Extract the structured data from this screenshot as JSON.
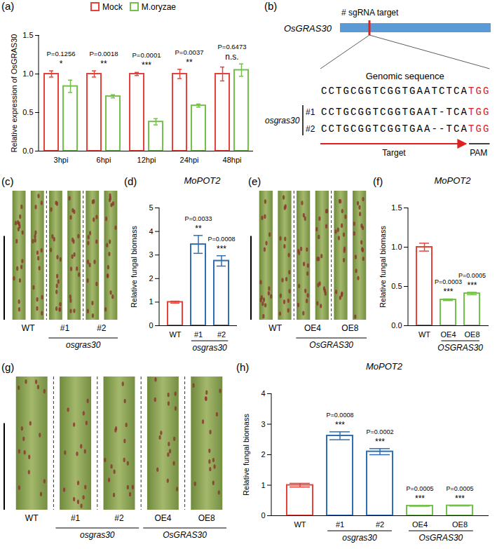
{
  "chart_data": [
    {
      "panel": "(a)",
      "type": "bar",
      "ylabel": "Relative expression of OsGRAS30",
      "categories": [
        "3hpi",
        "6hpi",
        "12hpi",
        "24hpi",
        "48hpi"
      ],
      "series": [
        {
          "name": "Mock",
          "color": "#e8413a",
          "values": [
            1.0,
            1.0,
            1.0,
            1.0,
            1.0
          ],
          "errors": [
            0.04,
            0.04,
            0.02,
            0.06,
            0.09
          ]
        },
        {
          "name": "M.oryzae",
          "color": "#73c04b",
          "values": [
            0.84,
            0.71,
            0.38,
            0.59,
            1.05
          ],
          "errors": [
            0.08,
            0.02,
            0.04,
            0.02,
            0.08
          ]
        }
      ],
      "ylim": [
        0,
        1.5
      ],
      "yticks": [
        {
          "value": 0,
          "label": "0.0"
        },
        {
          "value": 0.5,
          "label": "0.5"
        },
        {
          "value": 1,
          "label": "1.0"
        },
        {
          "value": 1.5,
          "label": "1.5"
        }
      ],
      "annotations": [
        {
          "category": "3hpi",
          "label": "P=0.1256",
          "stars": "*"
        },
        {
          "category": "6hpi",
          "label": "P=0.0018",
          "stars": "**"
        },
        {
          "category": "12hpi",
          "label": "P=0.0001",
          "stars": "***"
        },
        {
          "category": "24hpi",
          "label": "P=0.0037",
          "stars": "**"
        },
        {
          "category": "48hpi",
          "label": "P=0.6473",
          "stars": "n.s."
        }
      ],
      "legend": "top"
    },
    {
      "panel": "(d)",
      "type": "bar",
      "title": "MoPOT2",
      "ylabel": "Relative fungal biomass",
      "categories": [
        "WT",
        "#1",
        "#2"
      ],
      "values": [
        1.0,
        3.45,
        2.75
      ],
      "errors": [
        0.04,
        0.38,
        0.22
      ],
      "colors": [
        "#e8413a",
        "#2f6eb5",
        "#2f6eb5"
      ],
      "ylim": [
        0,
        5
      ],
      "yticks": [
        0,
        1,
        2,
        3,
        4,
        5
      ],
      "annotations": [
        {
          "category": "#1",
          "label": "P=0.0033",
          "stars": "**"
        },
        {
          "category": "#2",
          "label": "P=0.0008",
          "stars": "***"
        }
      ],
      "groups": [
        {
          "label": "osgras30",
          "categories": [
            "#1",
            "#2"
          ]
        }
      ]
    },
    {
      "panel": "(f)",
      "type": "bar",
      "title": "MoPOT2",
      "ylabel": "Relative fungal biomass",
      "categories": [
        "WT",
        "OE4",
        "OE8"
      ],
      "values": [
        1.0,
        0.33,
        0.41
      ],
      "errors": [
        0.05,
        0.01,
        0.015
      ],
      "colors": [
        "#e8413a",
        "#73c04b",
        "#73c04b"
      ],
      "ylim": [
        0,
        1.5
      ],
      "yticks": [
        {
          "value": 0,
          "label": "0.0"
        },
        {
          "value": 0.5,
          "label": "0.5"
        },
        {
          "value": 1,
          "label": "1.0"
        },
        {
          "value": 1.5,
          "label": "1.5"
        }
      ],
      "annotations": [
        {
          "category": "OE4",
          "label": "P=0.0003",
          "stars": "***"
        },
        {
          "category": "OE8",
          "label": "P=0.0005",
          "stars": "***"
        }
      ],
      "groups": [
        {
          "label": "OSGRAS30",
          "categories": [
            "OE4",
            "OE8"
          ]
        }
      ]
    },
    {
      "panel": "(h)",
      "type": "bar",
      "title": "MoPOT2",
      "ylabel": "Relative fungal biomass",
      "categories": [
        "WT",
        "#1",
        "#2",
        "OE4",
        "OE8"
      ],
      "values": [
        1.0,
        2.62,
        2.1,
        0.32,
        0.33
      ],
      "errors": [
        0.06,
        0.13,
        0.1,
        0.01,
        0.01
      ],
      "colors": [
        "#e8413a",
        "#2f6eb5",
        "#2f6eb5",
        "#73c04b",
        "#73c04b"
      ],
      "ylim": [
        0,
        4
      ],
      "yticks": [
        0,
        1,
        2,
        3,
        4
      ],
      "annotations": [
        {
          "category": "#1",
          "label": "P=0.0008",
          "stars": "***"
        },
        {
          "category": "#2",
          "label": "P=0.0002",
          "stars": "***"
        },
        {
          "category": "OE4",
          "label": "P=0.0005",
          "stars": "***"
        },
        {
          "category": "OE8",
          "label": "P=0.0005",
          "stars": "***"
        }
      ],
      "groups": [
        {
          "label": "osgras30",
          "categories": [
            "#1",
            "#2"
          ]
        },
        {
          "label": "OsGRAS30",
          "categories": [
            "OE4",
            "OE8"
          ]
        }
      ]
    }
  ],
  "images": [
    {
      "panel": "(c)",
      "labels": [
        {
          "label": "WT",
          "leaves": 2
        },
        {
          "label": "#1",
          "leaves": 2
        },
        {
          "label": "#2",
          "leaves": 2
        }
      ],
      "groups": [
        {
          "label": "osgras30",
          "categories": [
            "#1",
            "#2"
          ]
        }
      ]
    },
    {
      "panel": "(e)",
      "labels": [
        {
          "label": "WT",
          "leaves": 2
        },
        {
          "label": "OE4",
          "leaves": 2
        },
        {
          "label": "OE8",
          "leaves": 2
        }
      ],
      "groups": [
        {
          "label": "OsGRAS30",
          "categories": [
            "OE4",
            "OE8"
          ]
        }
      ]
    },
    {
      "panel": "(g)",
      "labels": [
        {
          "label": "WT",
          "leaves": 1
        },
        {
          "label": "#1",
          "leaves": 1
        },
        {
          "label": "#2",
          "leaves": 1
        },
        {
          "label": "OE4",
          "leaves": 1
        },
        {
          "label": "OE8",
          "leaves": 1
        }
      ],
      "groups": [
        {
          "label": "osgras30",
          "categories": [
            "#1",
            "#2"
          ]
        },
        {
          "label": "OsGRAS30",
          "categories": [
            "OE4",
            "OE8"
          ]
        }
      ]
    }
  ],
  "diagram": {
    "panel": "(b)",
    "target_note": "# sgRNA target",
    "gene": "OsGRAS30",
    "genomic_label": "Genomic sequence",
    "genomic": {
      "sequence": "CCTGCGGTCGGTGAATCTCA",
      "pam": "TGG"
    },
    "mutant": "osgras30",
    "alleles": [
      {
        "label": "#1",
        "sequence": "CCTGCGGTCGGTGAAT-TCA",
        "pam": "TGG"
      },
      {
        "label": "#2",
        "sequence": "CCTGCGGTCGGTGAA--TCA",
        "pam": "TGG"
      }
    ],
    "target_label": "Target",
    "pam_label": "PAM"
  }
}
